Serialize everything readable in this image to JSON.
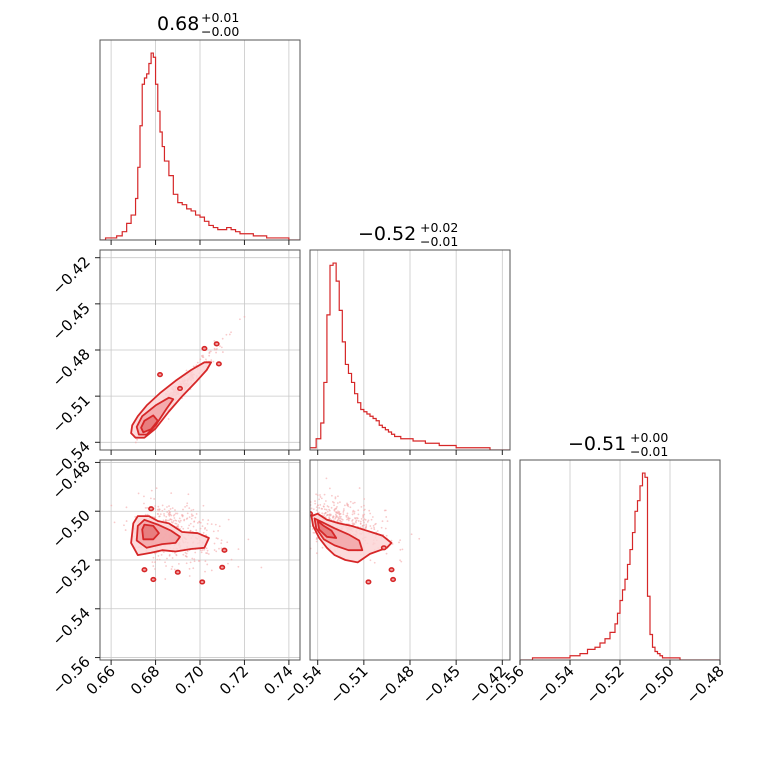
{
  "chart_data": [
    {
      "type": "histogram",
      "panel": "diag-0",
      "title": {
        "value": "0.68",
        "plus": "+0.01",
        "minus": "−0.00"
      },
      "xlim": [
        0.655,
        0.745
      ],
      "xticks": [
        0.66,
        0.68,
        0.7,
        0.72,
        0.74
      ],
      "xtick_labels": [
        "0.66",
        "0.68",
        "0.70",
        "0.72",
        "0.74"
      ],
      "bins": [
        0.655,
        0.6575,
        0.66,
        0.6625,
        0.665,
        0.667,
        0.669,
        0.671,
        0.672,
        0.673,
        0.674,
        0.675,
        0.676,
        0.677,
        0.678,
        0.679,
        0.68,
        0.681,
        0.682,
        0.683,
        0.684,
        0.686,
        0.688,
        0.69,
        0.692,
        0.694,
        0.696,
        0.698,
        0.7,
        0.702,
        0.704,
        0.706,
        0.708,
        0.71,
        0.712,
        0.714,
        0.716,
        0.718,
        0.72,
        0.722,
        0.724,
        0.726,
        0.728,
        0.73,
        0.733,
        0.736,
        0.74,
        0.745
      ],
      "counts": [
        0,
        1,
        1,
        2,
        4,
        8,
        12,
        20,
        35,
        55,
        75,
        78,
        80,
        85,
        90,
        88,
        75,
        62,
        52,
        45,
        38,
        31,
        22,
        18,
        17,
        15,
        14,
        12,
        11,
        9,
        7,
        6,
        5,
        5,
        6,
        5,
        4,
        3,
        3,
        3,
        2,
        2,
        2,
        1,
        1,
        1,
        0
      ]
    },
    {
      "type": "histogram",
      "panel": "diag-1",
      "title": {
        "value": "−0.52",
        "plus": "+0.02",
        "minus": "−0.01"
      },
      "xlim": [
        -0.545,
        -0.415
      ],
      "xticks": [
        -0.54,
        -0.51,
        -0.48,
        -0.45,
        -0.42
      ],
      "xtick_labels": [
        "−0.54",
        "−0.51",
        "−0.48",
        "−0.45",
        "−0.42"
      ],
      "bins": [
        -0.545,
        -0.541,
        -0.538,
        -0.536,
        -0.534,
        -0.532,
        -0.53,
        -0.528,
        -0.526,
        -0.524,
        -0.522,
        -0.52,
        -0.518,
        -0.516,
        -0.514,
        -0.512,
        -0.51,
        -0.508,
        -0.506,
        -0.504,
        -0.502,
        -0.5,
        -0.498,
        -0.496,
        -0.494,
        -0.492,
        -0.49,
        -0.488,
        -0.486,
        -0.484,
        -0.482,
        -0.48,
        -0.478,
        -0.476,
        -0.474,
        -0.472,
        -0.47,
        -0.467,
        -0.464,
        -0.461,
        -0.458,
        -0.454,
        -0.45,
        -0.445,
        -0.44,
        -0.434,
        -0.428,
        -0.415
      ],
      "counts": [
        1,
        5,
        12,
        30,
        60,
        82,
        83,
        75,
        62,
        48,
        38,
        34,
        30,
        25,
        21,
        18,
        17,
        16,
        15,
        14,
        13,
        11,
        10,
        9,
        8,
        7,
        6,
        6,
        5,
        5,
        5,
        5,
        4,
        4,
        4,
        4,
        3,
        3,
        3,
        2,
        2,
        2,
        1,
        1,
        1,
        1,
        0
      ]
    },
    {
      "type": "histogram",
      "panel": "diag-2",
      "title": {
        "value": "−0.51",
        "plus": "+0.00",
        "minus": "−0.01"
      },
      "xlim": [
        -0.56,
        -0.48
      ],
      "xticks": [
        -0.56,
        -0.54,
        -0.52,
        -0.5,
        -0.48
      ],
      "xtick_labels": [
        "−0.56",
        "−0.54",
        "−0.52",
        "−0.50",
        "−0.48"
      ],
      "bins": [
        -0.56,
        -0.555,
        -0.55,
        -0.545,
        -0.54,
        -0.536,
        -0.533,
        -0.53,
        -0.528,
        -0.526,
        -0.524,
        -0.522,
        -0.521,
        -0.52,
        -0.519,
        -0.518,
        -0.517,
        -0.516,
        -0.515,
        -0.514,
        -0.513,
        -0.512,
        -0.511,
        -0.51,
        -0.509,
        -0.508,
        -0.507,
        -0.506,
        -0.505,
        -0.504,
        -0.503,
        -0.502,
        -0.5,
        -0.498,
        -0.496,
        -0.494,
        -0.49,
        -0.48
      ],
      "counts": [
        0,
        1,
        1,
        1,
        2,
        3,
        5,
        6,
        8,
        10,
        13,
        17,
        22,
        28,
        33,
        38,
        45,
        52,
        60,
        70,
        75,
        82,
        88,
        86,
        30,
        12,
        6,
        4,
        3,
        2,
        1,
        1,
        1,
        1,
        0,
        0,
        0
      ]
    },
    {
      "type": "contour",
      "panel": "lower-1-0",
      "xlim": [
        0.655,
        0.745
      ],
      "ylim": [
        -0.545,
        -0.415
      ],
      "yticks": [
        -0.54,
        -0.51,
        -0.48,
        -0.45,
        -0.42
      ],
      "ytick_labels": [
        "−0.54",
        "−0.51",
        "−0.48",
        "−0.45",
        "−0.42"
      ],
      "center": [
        0.678,
        -0.525
      ],
      "levels": [
        {
          "x": [
            0.6695,
            0.669,
            0.671,
            0.675,
            0.68,
            0.686,
            0.692,
            0.698,
            0.703,
            0.705,
            0.702,
            0.696,
            0.689,
            0.682,
            0.676,
            0.672,
            0.6695
          ],
          "y": [
            -0.529,
            -0.534,
            -0.537,
            -0.537,
            -0.531,
            -0.52,
            -0.51,
            -0.501,
            -0.493,
            -0.488,
            -0.488,
            -0.493,
            -0.5,
            -0.508,
            -0.516,
            -0.523,
            -0.529
          ]
        },
        {
          "x": [
            0.6715,
            0.6725,
            0.676,
            0.68,
            0.685,
            0.688,
            0.686,
            0.68,
            0.674,
            0.6715
          ],
          "y": [
            -0.53,
            -0.535,
            -0.535,
            -0.529,
            -0.518,
            -0.512,
            -0.511,
            -0.516,
            -0.523,
            -0.53
          ]
        },
        {
          "x": [
            0.6735,
            0.6745,
            0.678,
            0.681,
            0.679,
            0.675,
            0.6735
          ],
          "y": [
            -0.5305,
            -0.5335,
            -0.5315,
            -0.526,
            -0.5225,
            -0.526,
            -0.5305
          ]
        }
      ],
      "islands": [
        [
          0.7075,
          -0.476
        ],
        [
          0.7085,
          -0.489
        ],
        [
          0.691,
          -0.505
        ],
        [
          0.682,
          -0.496
        ],
        [
          0.702,
          -0.479
        ]
      ]
    },
    {
      "type": "contour",
      "panel": "lower-2-0",
      "xlim": [
        0.655,
        0.745
      ],
      "ylim": [
        -0.561,
        -0.479
      ],
      "yticks": [
        -0.56,
        -0.54,
        -0.52,
        -0.5,
        -0.48
      ],
      "ytick_labels": [
        "−0.56",
        "−0.54",
        "−0.52",
        "−0.50",
        "−0.48"
      ],
      "center": [
        0.678,
        -0.508
      ],
      "levels": [
        {
          "x": [
            0.67,
            0.669,
            0.672,
            0.678,
            0.683,
            0.689,
            0.696,
            0.702,
            0.704,
            0.699,
            0.692,
            0.686,
            0.681,
            0.677,
            0.672,
            0.67
          ],
          "y": [
            -0.505,
            -0.513,
            -0.518,
            -0.517,
            -0.516,
            -0.5165,
            -0.5155,
            -0.515,
            -0.511,
            -0.509,
            -0.5085,
            -0.505,
            -0.504,
            -0.502,
            -0.502,
            -0.505
          ]
        },
        {
          "x": [
            0.672,
            0.6715,
            0.676,
            0.683,
            0.689,
            0.691,
            0.687,
            0.681,
            0.675,
            0.672
          ],
          "y": [
            -0.506,
            -0.512,
            -0.515,
            -0.5135,
            -0.513,
            -0.5105,
            -0.508,
            -0.5055,
            -0.5035,
            -0.506
          ]
        },
        {
          "x": [
            0.674,
            0.6745,
            0.679,
            0.6815,
            0.679,
            0.675,
            0.674
          ],
          "y": [
            -0.5075,
            -0.5115,
            -0.5115,
            -0.509,
            -0.506,
            -0.5055,
            -0.5075
          ]
        }
      ],
      "islands": [
        [
          0.675,
          -0.524
        ],
        [
          0.679,
          -0.528
        ],
        [
          0.69,
          -0.525
        ],
        [
          0.701,
          -0.529
        ],
        [
          0.711,
          -0.516
        ],
        [
          0.71,
          -0.523
        ],
        [
          0.678,
          -0.499
        ]
      ]
    },
    {
      "type": "contour",
      "panel": "lower-2-1",
      "xlim": [
        -0.545,
        -0.415
      ],
      "ylim": [
        -0.561,
        -0.479
      ],
      "center": [
        -0.538,
        -0.504
      ],
      "levels": [
        {
          "x": [
            -0.544,
            -0.543,
            -0.539,
            -0.534,
            -0.529,
            -0.522,
            -0.514,
            -0.506,
            -0.495,
            -0.492,
            -0.498,
            -0.508,
            -0.518,
            -0.526,
            -0.534,
            -0.54,
            -0.544
          ],
          "y": [
            -0.502,
            -0.506,
            -0.511,
            -0.515,
            -0.518,
            -0.52,
            -0.521,
            -0.5175,
            -0.515,
            -0.513,
            -0.51,
            -0.508,
            -0.506,
            -0.505,
            -0.5035,
            -0.501,
            -0.502
          ]
        },
        {
          "x": [
            -0.542,
            -0.541,
            -0.536,
            -0.529,
            -0.52,
            -0.511,
            -0.513,
            -0.52,
            -0.529,
            -0.537,
            -0.542
          ],
          "y": [
            -0.503,
            -0.507,
            -0.5115,
            -0.514,
            -0.516,
            -0.516,
            -0.512,
            -0.5095,
            -0.507,
            -0.5045,
            -0.503
          ]
        },
        {
          "x": [
            -0.54,
            -0.539,
            -0.534,
            -0.528,
            -0.531,
            -0.536,
            -0.54
          ],
          "y": [
            -0.504,
            -0.5075,
            -0.5105,
            -0.511,
            -0.508,
            -0.506,
            -0.504
          ]
        }
      ],
      "islands": [
        [
          -0.492,
          -0.524
        ],
        [
          -0.491,
          -0.528
        ],
        [
          -0.507,
          -0.529
        ],
        [
          -0.497,
          -0.515
        ],
        [
          -0.545,
          -0.501
        ]
      ]
    }
  ]
}
